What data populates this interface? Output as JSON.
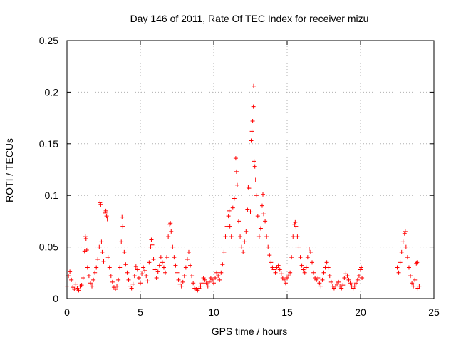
{
  "chart_data": {
    "type": "scatter",
    "title": "Day 146 of 2011, Rate Of TEC Index for receiver mizu",
    "xlabel": "GPS time / hours",
    "ylabel": "ROTI / TECUs",
    "xlim": [
      0,
      25
    ],
    "ylim": [
      0,
      0.25
    ],
    "x_ticks": [
      0,
      5,
      10,
      15,
      20,
      25
    ],
    "x_tick_labels": [
      "0",
      "5",
      "10",
      "15",
      "20",
      "25"
    ],
    "y_ticks": [
      0,
      0.05,
      0.1,
      0.15,
      0.2,
      0.25
    ],
    "y_tick_labels": [
      "0",
      "0.05",
      "0.1",
      "0.15",
      "0.2",
      "0.25"
    ],
    "grid": true,
    "marker": "+",
    "series": [
      {
        "name": "ROTI",
        "color": "#ff0000",
        "points": [
          [
            0.0,
            0.012
          ],
          [
            0.1,
            0.022
          ],
          [
            0.2,
            0.026
          ],
          [
            0.3,
            0.018
          ],
          [
            0.4,
            0.011
          ],
          [
            0.5,
            0.009
          ],
          [
            0.6,
            0.014
          ],
          [
            0.7,
            0.01
          ],
          [
            0.8,
            0.008
          ],
          [
            0.9,
            0.012
          ],
          [
            1.0,
            0.013
          ],
          [
            1.1,
            0.02
          ],
          [
            1.2,
            0.046
          ],
          [
            1.25,
            0.06
          ],
          [
            1.3,
            0.058
          ],
          [
            1.35,
            0.047
          ],
          [
            1.4,
            0.03
          ],
          [
            1.5,
            0.022
          ],
          [
            1.6,
            0.015
          ],
          [
            1.7,
            0.012
          ],
          [
            1.8,
            0.018
          ],
          [
            1.9,
            0.025
          ],
          [
            2.0,
            0.03
          ],
          [
            2.1,
            0.038
          ],
          [
            2.2,
            0.05
          ],
          [
            2.25,
            0.093
          ],
          [
            2.3,
            0.091
          ],
          [
            2.35,
            0.055
          ],
          [
            2.4,
            0.045
          ],
          [
            2.5,
            0.036
          ],
          [
            2.6,
            0.083
          ],
          [
            2.65,
            0.085
          ],
          [
            2.7,
            0.08
          ],
          [
            2.75,
            0.077
          ],
          [
            2.8,
            0.04
          ],
          [
            2.9,
            0.03
          ],
          [
            3.0,
            0.022
          ],
          [
            3.1,
            0.016
          ],
          [
            3.2,
            0.011
          ],
          [
            3.3,
            0.009
          ],
          [
            3.4,
            0.012
          ],
          [
            3.5,
            0.018
          ],
          [
            3.6,
            0.03
          ],
          [
            3.7,
            0.055
          ],
          [
            3.75,
            0.079
          ],
          [
            3.8,
            0.07
          ],
          [
            3.9,
            0.045
          ],
          [
            4.0,
            0.033
          ],
          [
            4.1,
            0.025
          ],
          [
            4.2,
            0.018
          ],
          [
            4.3,
            0.012
          ],
          [
            4.4,
            0.01
          ],
          [
            4.5,
            0.014
          ],
          [
            4.6,
            0.022
          ],
          [
            4.7,
            0.031
          ],
          [
            4.8,
            0.028
          ],
          [
            4.9,
            0.02
          ],
          [
            5.0,
            0.015
          ],
          [
            5.1,
            0.024
          ],
          [
            5.2,
            0.03
          ],
          [
            5.3,
            0.027
          ],
          [
            5.4,
            0.022
          ],
          [
            5.5,
            0.017
          ],
          [
            5.6,
            0.035
          ],
          [
            5.7,
            0.05
          ],
          [
            5.75,
            0.057
          ],
          [
            5.8,
            0.052
          ],
          [
            5.9,
            0.038
          ],
          [
            6.0,
            0.028
          ],
          [
            6.1,
            0.02
          ],
          [
            6.2,
            0.026
          ],
          [
            6.3,
            0.032
          ],
          [
            6.4,
            0.04
          ],
          [
            6.5,
            0.035
          ],
          [
            6.6,
            0.03
          ],
          [
            6.7,
            0.025
          ],
          [
            6.8,
            0.04
          ],
          [
            6.9,
            0.06
          ],
          [
            7.0,
            0.072
          ],
          [
            7.05,
            0.073
          ],
          [
            7.1,
            0.065
          ],
          [
            7.2,
            0.05
          ],
          [
            7.3,
            0.04
          ],
          [
            7.4,
            0.032
          ],
          [
            7.5,
            0.025
          ],
          [
            7.6,
            0.018
          ],
          [
            7.7,
            0.014
          ],
          [
            7.8,
            0.012
          ],
          [
            7.9,
            0.016
          ],
          [
            8.0,
            0.022
          ],
          [
            8.1,
            0.03
          ],
          [
            8.2,
            0.038
          ],
          [
            8.3,
            0.045
          ],
          [
            8.4,
            0.032
          ],
          [
            8.5,
            0.022
          ],
          [
            8.6,
            0.015
          ],
          [
            8.7,
            0.01
          ],
          [
            8.8,
            0.009
          ],
          [
            8.9,
            0.008
          ],
          [
            9.0,
            0.01
          ],
          [
            9.1,
            0.012
          ],
          [
            9.2,
            0.015
          ],
          [
            9.3,
            0.02
          ],
          [
            9.4,
            0.018
          ],
          [
            9.5,
            0.015
          ],
          [
            9.6,
            0.012
          ],
          [
            9.7,
            0.016
          ],
          [
            9.8,
            0.02
          ],
          [
            9.9,
            0.018
          ],
          [
            10.0,
            0.015
          ],
          [
            10.1,
            0.02
          ],
          [
            10.2,
            0.025
          ],
          [
            10.3,
            0.022
          ],
          [
            10.4,
            0.018
          ],
          [
            10.5,
            0.025
          ],
          [
            10.6,
            0.033
          ],
          [
            10.7,
            0.045
          ],
          [
            10.8,
            0.06
          ],
          [
            10.9,
            0.07
          ],
          [
            11.0,
            0.08
          ],
          [
            11.05,
            0.085
          ],
          [
            11.1,
            0.07
          ],
          [
            11.2,
            0.06
          ],
          [
            11.3,
            0.088
          ],
          [
            11.4,
            0.097
          ],
          [
            11.5,
            0.136
          ],
          [
            11.55,
            0.123
          ],
          [
            11.6,
            0.11
          ],
          [
            11.7,
            0.075
          ],
          [
            11.8,
            0.06
          ],
          [
            11.9,
            0.05
          ],
          [
            12.0,
            0.045
          ],
          [
            12.1,
            0.055
          ],
          [
            12.2,
            0.065
          ],
          [
            12.3,
            0.086
          ],
          [
            12.35,
            0.108
          ],
          [
            12.4,
            0.107
          ],
          [
            12.5,
            0.084
          ],
          [
            12.55,
            0.153
          ],
          [
            12.6,
            0.162
          ],
          [
            12.65,
            0.172
          ],
          [
            12.7,
            0.186
          ],
          [
            12.72,
            0.206
          ],
          [
            12.75,
            0.133
          ],
          [
            12.8,
            0.128
          ],
          [
            12.85,
            0.115
          ],
          [
            12.9,
            0.1
          ],
          [
            13.0,
            0.08
          ],
          [
            13.1,
            0.06
          ],
          [
            13.2,
            0.068
          ],
          [
            13.3,
            0.09
          ],
          [
            13.35,
            0.101
          ],
          [
            13.4,
            0.082
          ],
          [
            13.5,
            0.075
          ],
          [
            13.6,
            0.06
          ],
          [
            13.7,
            0.05
          ],
          [
            13.8,
            0.042
          ],
          [
            13.9,
            0.035
          ],
          [
            14.0,
            0.03
          ],
          [
            14.1,
            0.028
          ],
          [
            14.2,
            0.025
          ],
          [
            14.3,
            0.03
          ],
          [
            14.4,
            0.032
          ],
          [
            14.5,
            0.028
          ],
          [
            14.6,
            0.024
          ],
          [
            14.7,
            0.02
          ],
          [
            14.8,
            0.018
          ],
          [
            14.9,
            0.015
          ],
          [
            15.0,
            0.02
          ],
          [
            15.1,
            0.022
          ],
          [
            15.2,
            0.025
          ],
          [
            15.3,
            0.04
          ],
          [
            15.4,
            0.06
          ],
          [
            15.5,
            0.072
          ],
          [
            15.55,
            0.074
          ],
          [
            15.6,
            0.07
          ],
          [
            15.7,
            0.06
          ],
          [
            15.8,
            0.05
          ],
          [
            15.9,
            0.04
          ],
          [
            16.0,
            0.032
          ],
          [
            16.1,
            0.028
          ],
          [
            16.2,
            0.025
          ],
          [
            16.3,
            0.03
          ],
          [
            16.4,
            0.04
          ],
          [
            16.5,
            0.048
          ],
          [
            16.6,
            0.045
          ],
          [
            16.7,
            0.035
          ],
          [
            16.8,
            0.025
          ],
          [
            16.9,
            0.02
          ],
          [
            17.0,
            0.018
          ],
          [
            17.1,
            0.02
          ],
          [
            17.2,
            0.015
          ],
          [
            17.3,
            0.012
          ],
          [
            17.4,
            0.018
          ],
          [
            17.5,
            0.025
          ],
          [
            17.6,
            0.03
          ],
          [
            17.7,
            0.035
          ],
          [
            17.8,
            0.03
          ],
          [
            17.9,
            0.022
          ],
          [
            18.0,
            0.016
          ],
          [
            18.1,
            0.012
          ],
          [
            18.2,
            0.01
          ],
          [
            18.3,
            0.012
          ],
          [
            18.4,
            0.014
          ],
          [
            18.5,
            0.016
          ],
          [
            18.6,
            0.012
          ],
          [
            18.7,
            0.01
          ],
          [
            18.8,
            0.013
          ],
          [
            18.9,
            0.02
          ],
          [
            19.0,
            0.024
          ],
          [
            19.1,
            0.022
          ],
          [
            19.2,
            0.018
          ],
          [
            19.3,
            0.015
          ],
          [
            19.4,
            0.012
          ],
          [
            19.5,
            0.01
          ],
          [
            19.6,
            0.012
          ],
          [
            19.7,
            0.015
          ],
          [
            19.8,
            0.018
          ],
          [
            19.9,
            0.022
          ],
          [
            20.0,
            0.028
          ],
          [
            20.05,
            0.03
          ],
          [
            20.1,
            0.02
          ],
          [
            22.5,
            0.03
          ],
          [
            22.6,
            0.025
          ],
          [
            22.7,
            0.035
          ],
          [
            22.8,
            0.045
          ],
          [
            22.9,
            0.055
          ],
          [
            23.0,
            0.063
          ],
          [
            23.05,
            0.065
          ],
          [
            23.1,
            0.05
          ],
          [
            23.2,
            0.04
          ],
          [
            23.3,
            0.03
          ],
          [
            23.4,
            0.022
          ],
          [
            23.5,
            0.015
          ],
          [
            23.6,
            0.012
          ],
          [
            23.7,
            0.018
          ],
          [
            23.8,
            0.034
          ],
          [
            23.85,
            0.035
          ],
          [
            23.9,
            0.01
          ],
          [
            24.0,
            0.012
          ]
        ]
      }
    ]
  }
}
